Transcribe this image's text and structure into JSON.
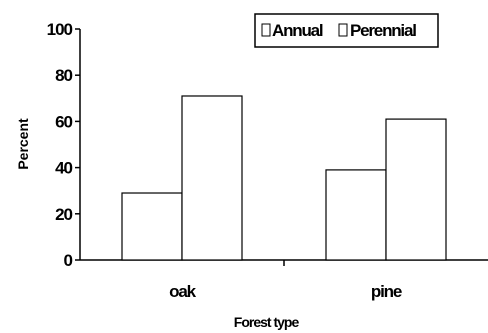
{
  "chart_data": {
    "type": "bar",
    "categories": [
      "oak",
      "pine"
    ],
    "series": [
      {
        "name": "Annual",
        "values": [
          29,
          39
        ]
      },
      {
        "name": "Perennial",
        "values": [
          71,
          61
        ]
      }
    ],
    "xlabel": "Forest type",
    "ylabel": "Percent",
    "ylim": [
      0,
      100
    ],
    "yticks": [
      0,
      20,
      40,
      60,
      80,
      100
    ],
    "grid": false,
    "legend": "top-right",
    "bar_fill": "#ffffff",
    "bar_stroke": "#000000"
  }
}
